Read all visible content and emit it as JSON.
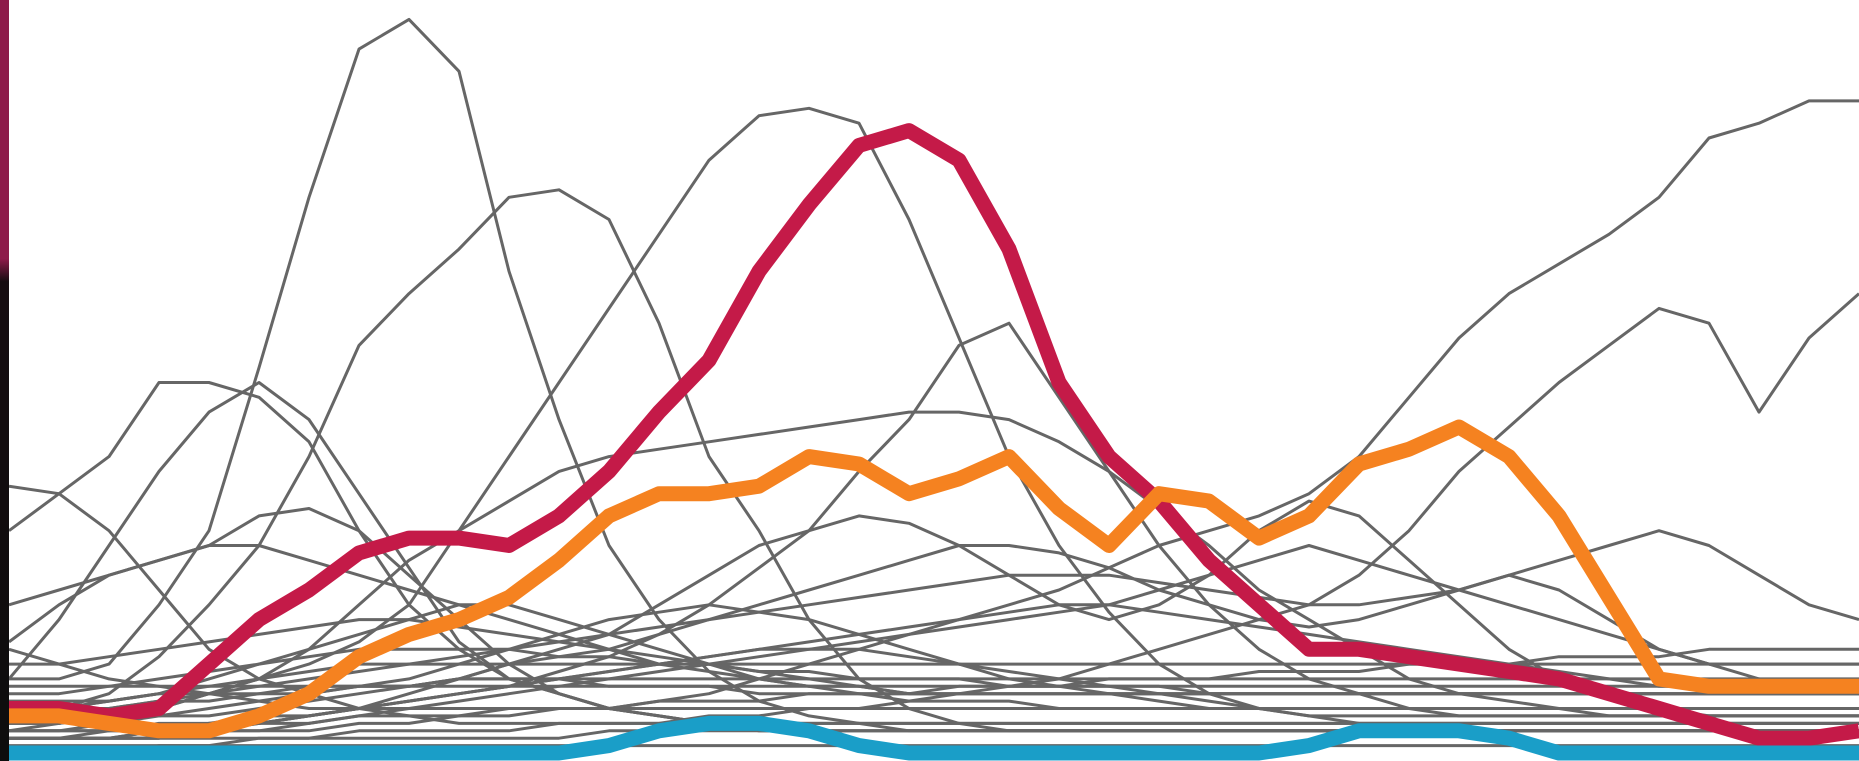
{
  "colors": {
    "background": "#ffffff",
    "window_edge": "#8e1b4a",
    "context_lines": "#666666",
    "highlight_crimson": "#c41a48",
    "highlight_orange": "#f58220",
    "highlight_blue": "#1a9ec8"
  },
  "chart_data": {
    "type": "line",
    "title": "",
    "xlabel": "",
    "ylabel": "",
    "x": [
      0,
      1,
      2,
      3,
      4,
      5,
      6,
      7,
      8,
      9,
      10,
      11,
      12,
      13,
      14,
      15,
      16,
      17,
      18,
      19,
      20,
      21,
      22,
      23,
      24,
      25,
      26,
      27,
      28,
      29,
      30,
      31,
      32,
      33,
      34,
      35,
      36,
      37
    ],
    "ylim": [
      0,
      100
    ],
    "grid": false,
    "legend": "none",
    "context_series": [
      [
        10,
        10,
        12,
        20,
        30,
        52,
        75,
        95,
        99,
        92,
        65,
        45,
        28,
        18,
        11,
        7,
        5,
        4,
        3,
        3,
        3,
        3,
        3,
        3,
        3,
        3,
        3,
        3,
        3,
        3,
        3,
        3,
        3,
        3,
        3,
        3,
        3,
        3
      ],
      [
        5,
        6,
        8,
        13,
        20,
        28,
        40,
        55,
        62,
        68,
        75,
        76,
        72,
        58,
        40,
        30,
        18,
        10,
        6,
        4,
        3,
        3,
        3,
        3,
        3,
        3,
        3,
        3,
        3,
        3,
        3,
        3,
        3,
        3,
        3,
        3,
        3,
        3
      ],
      [
        3,
        4,
        5,
        6,
        8,
        10,
        12,
        15,
        20,
        30,
        40,
        50,
        60,
        70,
        80,
        86,
        87,
        85,
        72,
        56,
        40,
        28,
        19,
        12,
        8,
        6,
        5,
        4,
        4,
        4,
        4,
        4,
        4,
        4,
        4,
        4,
        4,
        4
      ],
      [
        2,
        2,
        3,
        3,
        4,
        4,
        5,
        6,
        7,
        8,
        9,
        11,
        13,
        16,
        20,
        25,
        30,
        38,
        45,
        55,
        58,
        48,
        38,
        28,
        20,
        14,
        10,
        8,
        6,
        5,
        5,
        5,
        5,
        5,
        5,
        5,
        5,
        5
      ],
      [
        30,
        35,
        40,
        50,
        50,
        48,
        42,
        30,
        20,
        14,
        10,
        8,
        6,
        5,
        4,
        4,
        4,
        4,
        4,
        4,
        4,
        4,
        4,
        4,
        4,
        4,
        4,
        4,
        4,
        4,
        4,
        4,
        4,
        4,
        4,
        4,
        4,
        4
      ],
      [
        10,
        18,
        28,
        38,
        46,
        50,
        45,
        35,
        25,
        15,
        10,
        8,
        6,
        5,
        4,
        3,
        3,
        3,
        3,
        3,
        3,
        3,
        3,
        3,
        3,
        3,
        3,
        3,
        3,
        3,
        3,
        3,
        3,
        3,
        3,
        3,
        3,
        3
      ],
      [
        15,
        20,
        24,
        26,
        28,
        32,
        33,
        30,
        24,
        18,
        12,
        8,
        6,
        5,
        4,
        3,
        3,
        3,
        3,
        3,
        3,
        3,
        3,
        3,
        3,
        3,
        3,
        3,
        3,
        3,
        3,
        3,
        3,
        3,
        3,
        3,
        3,
        3
      ],
      [
        36,
        35,
        30,
        22,
        14,
        10,
        8,
        6,
        5,
        4,
        4,
        4,
        4,
        4,
        4,
        4,
        4,
        4,
        4,
        4,
        4,
        4,
        4,
        4,
        4,
        4,
        4,
        4,
        4,
        4,
        4,
        4,
        4,
        4,
        4,
        4,
        4,
        4
      ],
      [
        4,
        4,
        5,
        6,
        8,
        10,
        14,
        20,
        26,
        30,
        34,
        38,
        40,
        41,
        42,
        43,
        44,
        45,
        46,
        46,
        45,
        42,
        38,
        33,
        28,
        22,
        18,
        14,
        10,
        8,
        7,
        6,
        5,
        5,
        5,
        5,
        5,
        5
      ],
      [
        2,
        2,
        2,
        3,
        3,
        4,
        5,
        6,
        8,
        10,
        12,
        14,
        16,
        20,
        24,
        28,
        30,
        32,
        31,
        28,
        24,
        20,
        18,
        20,
        24,
        30,
        34,
        32,
        26,
        20,
        14,
        10,
        8,
        6,
        5,
        5,
        5,
        5
      ],
      [
        2,
        2,
        2,
        2,
        3,
        3,
        3,
        4,
        4,
        5,
        5,
        6,
        6,
        7,
        8,
        10,
        12,
        14,
        16,
        18,
        20,
        22,
        25,
        28,
        30,
        32,
        35,
        40,
        48,
        56,
        62,
        66,
        70,
        75,
        83,
        85,
        88,
        88
      ],
      [
        2,
        2,
        2,
        2,
        2,
        2,
        2,
        3,
        3,
        3,
        3,
        4,
        4,
        4,
        5,
        5,
        6,
        6,
        7,
        8,
        9,
        10,
        12,
        14,
        16,
        18,
        20,
        24,
        30,
        38,
        44,
        50,
        55,
        60,
        58,
        46,
        56,
        62
      ],
      [
        3,
        3,
        4,
        5,
        5,
        6,
        7,
        8,
        9,
        10,
        12,
        13,
        14,
        16,
        18,
        20,
        22,
        24,
        26,
        28,
        28,
        27,
        25,
        22,
        20,
        18,
        17,
        18,
        20,
        22,
        24,
        22,
        18,
        14,
        12,
        10,
        9,
        8
      ],
      [
        4,
        5,
        6,
        7,
        8,
        9,
        10,
        11,
        12,
        13,
        14,
        15,
        16,
        17,
        18,
        19,
        20,
        21,
        22,
        23,
        24,
        24,
        24,
        23,
        22,
        21,
        20,
        20,
        21,
        22,
        24,
        26,
        28,
        30,
        28,
        24,
        20,
        18
      ],
      [
        6,
        6,
        7,
        8,
        9,
        10,
        11,
        12,
        12,
        12,
        12,
        12,
        12,
        12,
        12,
        12,
        12,
        12,
        12,
        12,
        12,
        12,
        12,
        12,
        12,
        12,
        12,
        12,
        12,
        12,
        12,
        12,
        12,
        12,
        12,
        12,
        12,
        12
      ],
      [
        8,
        8,
        9,
        10,
        11,
        12,
        13,
        14,
        14,
        14,
        14,
        13,
        13,
        12,
        12,
        11,
        11,
        10,
        10,
        10,
        9,
        9,
        9,
        9,
        8,
        8,
        8,
        8,
        8,
        8,
        8,
        8,
        8,
        8,
        8,
        8,
        8,
        8
      ],
      [
        20,
        22,
        24,
        26,
        28,
        28,
        26,
        24,
        22,
        20,
        18,
        16,
        14,
        12,
        11,
        10,
        9,
        9,
        8,
        8,
        8,
        8,
        8,
        8,
        8,
        8,
        8,
        8,
        8,
        8,
        8,
        8,
        8,
        8,
        8,
        8,
        8,
        8
      ],
      [
        5,
        6,
        7,
        8,
        10,
        12,
        14,
        16,
        18,
        20,
        20,
        18,
        16,
        14,
        12,
        10,
        9,
        8,
        8,
        8,
        8,
        8,
        8,
        8,
        8,
        8,
        8,
        8,
        8,
        8,
        8,
        8,
        8,
        8,
        8,
        8,
        8,
        8
      ],
      [
        4,
        4,
        5,
        5,
        6,
        7,
        8,
        9,
        10,
        12,
        14,
        16,
        18,
        19,
        20,
        19,
        18,
        16,
        14,
        12,
        10,
        9,
        8,
        7,
        6,
        6,
        6,
        6,
        6,
        6,
        6,
        6,
        6,
        6,
        6,
        6,
        6,
        6
      ],
      [
        3,
        3,
        3,
        4,
        4,
        5,
        5,
        6,
        7,
        8,
        9,
        10,
        11,
        12,
        13,
        14,
        15,
        16,
        17,
        18,
        19,
        20,
        20,
        19,
        18,
        17,
        16,
        15,
        14,
        13,
        12,
        11,
        10,
        9,
        9,
        9,
        9,
        9
      ],
      [
        2,
        2,
        2,
        3,
        3,
        4,
        5,
        6,
        7,
        8,
        9,
        10,
        11,
        12,
        13,
        14,
        14,
        14,
        13,
        12,
        11,
        10,
        9,
        8,
        7,
        6,
        5,
        5,
        5,
        5,
        5,
        5,
        5,
        5,
        5,
        5,
        5,
        5
      ],
      [
        6,
        6,
        6,
        7,
        7,
        8,
        8,
        9,
        9,
        10,
        10,
        10,
        10,
        10,
        10,
        10,
        10,
        10,
        10,
        10,
        10,
        10,
        10,
        10,
        10,
        10,
        10,
        10,
        10,
        10,
        10,
        10,
        10,
        10,
        10,
        10,
        10,
        10
      ],
      [
        12,
        12,
        13,
        14,
        15,
        16,
        17,
        18,
        18,
        17,
        16,
        15,
        14,
        13,
        12,
        11,
        10,
        9,
        8,
        8,
        8,
        8,
        8,
        8,
        8,
        8,
        8,
        8,
        8,
        8,
        8,
        8,
        8,
        8,
        8,
        8,
        8,
        8
      ],
      [
        2,
        2,
        2,
        2,
        3,
        3,
        4,
        5,
        6,
        7,
        8,
        9,
        10,
        11,
        12,
        13,
        14,
        15,
        16,
        17,
        18,
        19,
        20,
        22,
        24,
        26,
        28,
        26,
        24,
        22,
        20,
        18,
        16,
        14,
        12,
        12,
        12,
        12
      ],
      [
        9,
        9,
        9,
        9,
        9,
        9,
        9,
        9,
        9,
        9,
        9,
        9,
        9,
        9,
        9,
        9,
        9,
        9,
        9,
        9,
        9,
        9,
        9,
        9,
        9,
        9,
        9,
        9,
        9,
        9,
        9,
        9,
        9,
        9,
        9,
        9,
        9,
        9
      ],
      [
        14,
        12,
        10,
        9,
        8,
        7,
        6,
        6,
        6,
        6,
        6,
        6,
        6,
        6,
        6,
        6,
        6,
        6,
        6,
        6,
        6,
        6,
        6,
        6,
        6,
        6,
        6,
        6,
        6,
        6,
        6,
        6,
        6,
        6,
        6,
        6,
        6,
        6
      ],
      [
        3,
        3,
        3,
        3,
        4,
        4,
        4,
        5,
        5,
        5,
        6,
        6,
        6,
        7,
        7,
        7,
        8,
        8,
        8,
        9,
        9,
        9,
        10,
        10,
        10,
        11,
        11,
        11,
        12,
        12,
        12,
        13,
        13,
        13,
        14,
        14,
        14,
        14
      ],
      [
        7,
        7,
        7,
        8,
        8,
        8,
        9,
        9,
        9,
        10,
        10,
        10,
        9,
        9,
        9,
        8,
        8,
        8,
        7,
        7,
        7,
        6,
        6,
        6,
        6,
        6,
        6,
        6,
        6,
        6,
        6,
        6,
        6,
        6,
        6,
        6,
        6,
        6
      ],
      [
        1,
        1,
        1,
        1,
        1,
        2,
        2,
        2,
        2,
        2,
        2,
        2,
        3,
        3,
        3,
        3,
        3,
        3,
        3,
        3,
        3,
        3,
        3,
        3,
        3,
        3,
        3,
        3,
        3,
        3,
        3,
        3,
        3,
        3,
        3,
        3,
        3,
        3
      ],
      [
        0,
        0,
        0,
        1,
        1,
        1,
        1,
        1,
        1,
        1,
        1,
        1,
        1,
        1,
        1,
        1,
        1,
        1,
        1,
        1,
        1,
        1,
        1,
        1,
        1,
        1,
        1,
        1,
        1,
        1,
        1,
        1,
        1,
        1,
        1,
        1,
        1,
        1
      ]
    ],
    "series": [
      {
        "values": [
          6,
          6,
          5,
          6,
          12,
          18,
          22,
          27,
          29,
          29,
          28,
          32,
          38,
          46,
          53,
          65,
          74,
          82,
          84,
          80,
          68,
          50,
          40,
          34,
          26,
          20,
          14,
          14,
          13,
          12,
          11,
          10,
          8,
          6,
          4,
          2,
          2,
          3
        ],
        "color": "#c41a48"
      },
      {
        "values": [
          5,
          5,
          4,
          3,
          3,
          5,
          8,
          13,
          16,
          18,
          21,
          26,
          32,
          35,
          35,
          36,
          40,
          39,
          35,
          37,
          40,
          33,
          28,
          35,
          34,
          29,
          32,
          39,
          41,
          44,
          40,
          32,
          21,
          10,
          9,
          9,
          9,
          9
        ],
        "color": "#f58220"
      },
      {
        "values": [
          0,
          0,
          0,
          0,
          0,
          0,
          0,
          0,
          0,
          0,
          0,
          0,
          1,
          3,
          4,
          4,
          3,
          1,
          0,
          0,
          0,
          0,
          0,
          0,
          0,
          0,
          1,
          3,
          3,
          3,
          2,
          0,
          0,
          0,
          0,
          0,
          0,
          0
        ],
        "color": "#1a9ec8"
      }
    ]
  }
}
